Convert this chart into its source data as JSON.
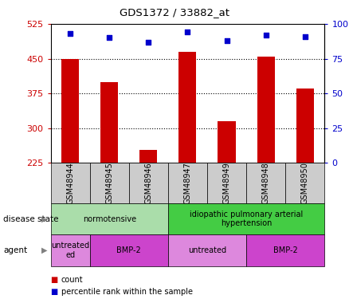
{
  "title": "GDS1372 / 33882_at",
  "samples": [
    "GSM48944",
    "GSM48945",
    "GSM48946",
    "GSM48947",
    "GSM48949",
    "GSM48948",
    "GSM48950"
  ],
  "counts": [
    450,
    400,
    253,
    465,
    315,
    455,
    385
  ],
  "percentiles": [
    93,
    90,
    87,
    94,
    88,
    92,
    91
  ],
  "ylim_left": [
    225,
    525
  ],
  "yticks_left": [
    225,
    300,
    375,
    450,
    525
  ],
  "ylim_right": [
    0,
    100
  ],
  "yticks_right": [
    0,
    25,
    50,
    75,
    100
  ],
  "bar_color": "#cc0000",
  "scatter_color": "#0000cc",
  "bar_width": 0.45,
  "bar_bottom": 225,
  "disease_state_groups": [
    {
      "label": "normotensive",
      "start": 0,
      "end": 3,
      "color": "#aaddaa"
    },
    {
      "label": "idiopathic pulmonary arterial\nhypertension",
      "start": 3,
      "end": 7,
      "color": "#44cc44"
    }
  ],
  "agent_groups": [
    {
      "label": "untreated\ned",
      "start": 0,
      "end": 1,
      "color": "#dd88dd"
    },
    {
      "label": "BMP-2",
      "start": 1,
      "end": 3,
      "color": "#cc44cc"
    },
    {
      "label": "untreated",
      "start": 3,
      "end": 5,
      "color": "#dd88dd"
    },
    {
      "label": "BMP-2",
      "start": 5,
      "end": 7,
      "color": "#cc44cc"
    }
  ],
  "annotation_color_left": "#cc0000",
  "annotation_color_right": "#0000cc",
  "grid_yticks": [
    300,
    375,
    450
  ],
  "sample_box_color": "#cccccc",
  "row_label_disease": "disease state",
  "row_label_agent": "agent",
  "legend_count_label": "count",
  "legend_pct_label": "percentile rank within the sample"
}
